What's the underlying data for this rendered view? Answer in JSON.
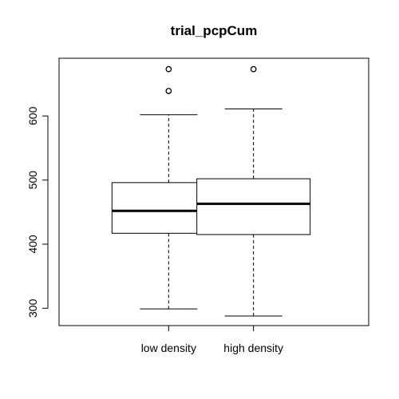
{
  "chart_data": {
    "type": "boxplot",
    "title": "trial_pcpCum",
    "xlabel": "",
    "ylabel": "",
    "categories": [
      "low density",
      "high density"
    ],
    "boxes": [
      {
        "category": "low density",
        "whisker_low": 299,
        "q1": 417,
        "median": 452,
        "q3": 496,
        "whisker_high": 602,
        "outliers": [
          639,
          673
        ]
      },
      {
        "category": "high density",
        "whisker_low": 288,
        "q1": 415,
        "median": 463,
        "q3": 502,
        "whisker_high": 611,
        "outliers": [
          673
        ]
      }
    ],
    "ylim": [
      273,
      690
    ],
    "yticks": [
      300,
      400,
      500,
      600
    ],
    "grid": false,
    "legend": "none"
  }
}
